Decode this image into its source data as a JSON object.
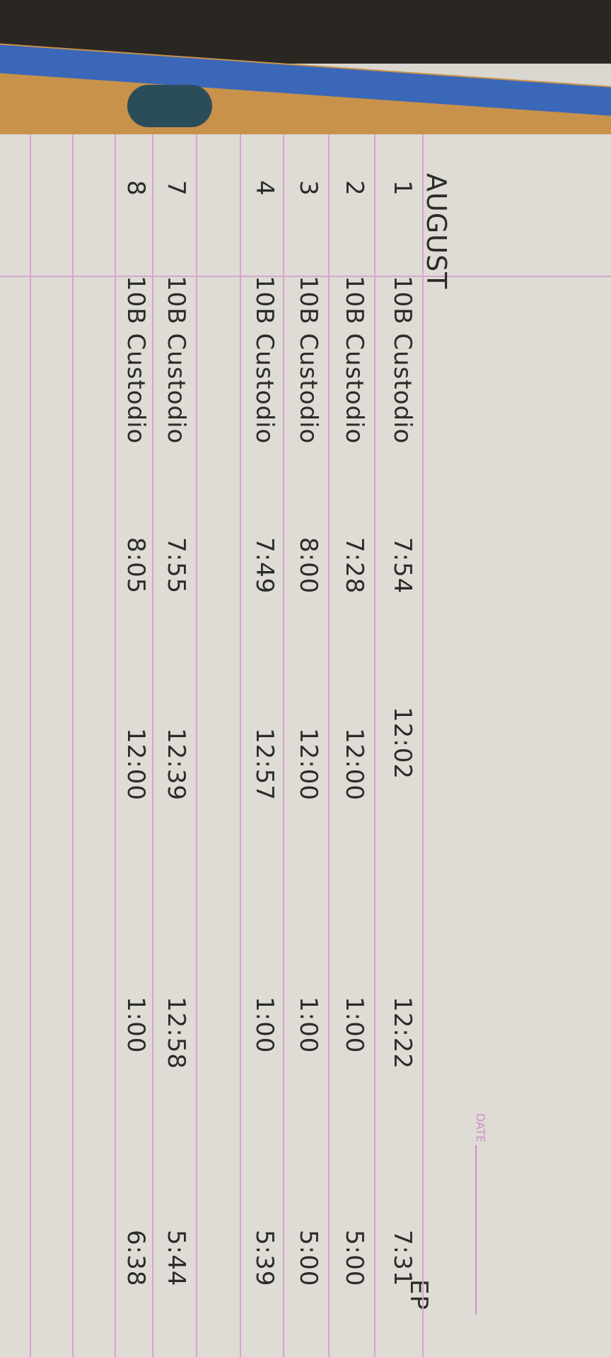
{
  "header": {
    "month": "AUGUST",
    "date_label": "DATE",
    "corner_text": "EP"
  },
  "rows": [
    {
      "day": "1",
      "name": "10B Custodio",
      "time_in": "7:54",
      "time_out_am": "12:02",
      "time_in_pm": "12:22",
      "time_out_pm": "7:31"
    },
    {
      "day": "2",
      "name": "10B Custodio",
      "time_in": "7:28",
      "time_out_am": "12:00",
      "time_in_pm": "1:00",
      "time_out_pm": "5:00"
    },
    {
      "day": "3",
      "name": "10B Custodio",
      "time_in": "8:00",
      "time_out_am": "12:00",
      "time_in_pm": "1:00",
      "time_out_pm": "5:00"
    },
    {
      "day": "4",
      "name": "10B Custodio",
      "time_in": "7:49",
      "time_out_am": "12:57",
      "time_in_pm": "1:00",
      "time_out_pm": "5:39"
    },
    {
      "day": "",
      "name": "",
      "time_in": "",
      "time_out_am": "",
      "time_in_pm": "",
      "time_out_pm": ""
    },
    {
      "day": "7",
      "name": "10B Custodio",
      "time_in": "7:55",
      "time_out_am": "12:39",
      "time_in_pm": "12:58",
      "time_out_pm": "5:44"
    },
    {
      "day": "8",
      "name": "10B Custodio",
      "time_in": "8:05",
      "time_out_am": "12:00",
      "time_in_pm": "1:00",
      "time_out_pm": "6:38"
    }
  ],
  "colors": {
    "ink": "#2b2b2b",
    "rule": "#d9a3d2",
    "paper": "#dedcd4",
    "cover_orange": "#c8924a",
    "cover_blue": "#3b67b8"
  }
}
